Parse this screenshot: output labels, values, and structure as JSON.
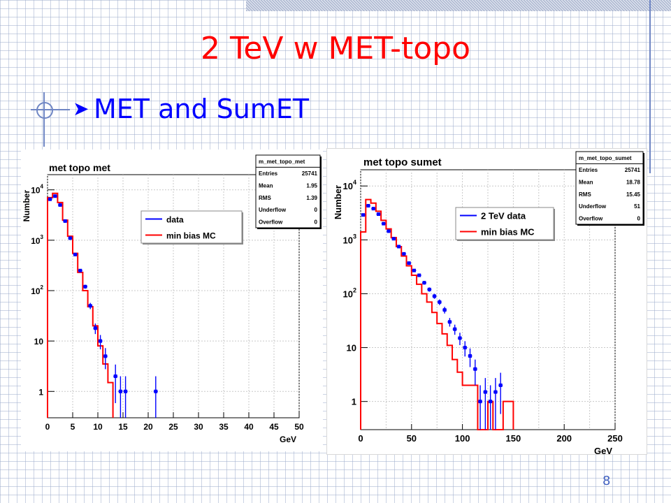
{
  "slide": {
    "title": "2 TeV w MET-topo",
    "bullet": "MET and SumET",
    "bullet_icon": "right-arrow-icon",
    "page_number": "8",
    "colors": {
      "title": "#ff0000",
      "bullet": "#0000ff",
      "data": "#0000ff",
      "mc": "#ff0000"
    }
  },
  "chart_data": [
    {
      "type": "line",
      "title": "met topo met",
      "ylabel": "Number",
      "xlabel": "GeV",
      "yscale": "log",
      "xlim": [
        0,
        50
      ],
      "ylim": [
        0.3,
        20000
      ],
      "x_ticks": [
        0,
        5,
        10,
        15,
        20,
        25,
        30,
        35,
        40,
        45,
        50
      ],
      "y_ticks": [
        {
          "value": 1,
          "base": "1",
          "exp": ""
        },
        {
          "value": 10,
          "base": "10",
          "exp": ""
        },
        {
          "value": 100,
          "base": "10",
          "exp": "2"
        },
        {
          "value": 1000,
          "base": "10",
          "exp": "3"
        },
        {
          "value": 10000,
          "base": "10",
          "exp": "4"
        }
      ],
      "grid": true,
      "legend_position": "top-right",
      "stats": {
        "name": "m_met_topo_met",
        "rows": [
          {
            "label": "Entries",
            "value": "25741"
          },
          {
            "label": "Mean",
            "value": "1.95"
          },
          {
            "label": "RMS",
            "value": "1.39"
          },
          {
            "label": "Underflow",
            "value": "0"
          },
          {
            "label": "Overflow",
            "value": "0"
          }
        ]
      },
      "series": [
        {
          "name": "data",
          "style": "points",
          "points": [
            {
              "x": 0.5,
              "y": 6500
            },
            {
              "x": 1.5,
              "y": 7500
            },
            {
              "x": 2.5,
              "y": 5000
            },
            {
              "x": 3.5,
              "y": 2400
            },
            {
              "x": 4.5,
              "y": 1100
            },
            {
              "x": 5.5,
              "y": 520
            },
            {
              "x": 6.5,
              "y": 250
            },
            {
              "x": 7.5,
              "y": 120
            },
            {
              "x": 8.5,
              "y": 50
            },
            {
              "x": 9.5,
              "y": 18
            },
            {
              "x": 10.5,
              "y": 10
            },
            {
              "x": 11.5,
              "y": 5
            },
            {
              "x": 13.5,
              "y": 2
            },
            {
              "x": 14.5,
              "y": 1
            },
            {
              "x": 15.5,
              "y": 1
            },
            {
              "x": 21.5,
              "y": 1
            }
          ]
        },
        {
          "name": "min bias MC",
          "style": "histogram",
          "bin_edges": [
            0,
            1,
            2,
            3,
            4,
            5,
            6,
            7,
            8,
            9,
            10,
            11,
            12,
            13
          ],
          "values": [
            7000,
            8500,
            5600,
            2500,
            1200,
            550,
            230,
            100,
            48,
            20,
            8,
            3.5,
            1.5
          ]
        }
      ]
    },
    {
      "type": "line",
      "title": "met topo sumet",
      "ylabel": "Number",
      "xlabel": "GeV",
      "yscale": "log",
      "xlim": [
        0,
        250
      ],
      "ylim": [
        0.3,
        20000
      ],
      "x_ticks": [
        0,
        50,
        100,
        150,
        200,
        250
      ],
      "y_ticks": [
        {
          "value": 1,
          "base": "1",
          "exp": ""
        },
        {
          "value": 10,
          "base": "10",
          "exp": ""
        },
        {
          "value": 100,
          "base": "10",
          "exp": "2"
        },
        {
          "value": 1000,
          "base": "10",
          "exp": "3"
        },
        {
          "value": 10000,
          "base": "10",
          "exp": "4"
        }
      ],
      "grid": true,
      "legend_position": "top-right",
      "stats": {
        "name": "m_met_topo_sumet",
        "rows": [
          {
            "label": "Entries",
            "value": "25741"
          },
          {
            "label": "Mean",
            "value": "18.78"
          },
          {
            "label": "RMS",
            "value": "15.45"
          },
          {
            "label": "Underflow",
            "value": "51"
          },
          {
            "label": "Overflow",
            "value": "0"
          }
        ]
      },
      "series": [
        {
          "name": "2 TeV data",
          "style": "points",
          "points": [
            {
              "x": 2.5,
              "y": 2900
            },
            {
              "x": 7.5,
              "y": 4300
            },
            {
              "x": 12.5,
              "y": 3800
            },
            {
              "x": 17.5,
              "y": 3000
            },
            {
              "x": 22.5,
              "y": 2000
            },
            {
              "x": 27.5,
              "y": 1450
            },
            {
              "x": 32.5,
              "y": 1050
            },
            {
              "x": 37.5,
              "y": 750
            },
            {
              "x": 42.5,
              "y": 550
            },
            {
              "x": 47.5,
              "y": 370
            },
            {
              "x": 52.5,
              "y": 270
            },
            {
              "x": 57.5,
              "y": 220
            },
            {
              "x": 62.5,
              "y": 160
            },
            {
              "x": 67.5,
              "y": 120
            },
            {
              "x": 72.5,
              "y": 90
            },
            {
              "x": 77.5,
              "y": 70
            },
            {
              "x": 82.5,
              "y": 50
            },
            {
              "x": 87.5,
              "y": 30
            },
            {
              "x": 92.5,
              "y": 22
            },
            {
              "x": 97.5,
              "y": 15
            },
            {
              "x": 102.5,
              "y": 10
            },
            {
              "x": 107.5,
              "y": 7
            },
            {
              "x": 112.5,
              "y": 4
            },
            {
              "x": 117.5,
              "y": 1
            },
            {
              "x": 122.5,
              "y": 1.5
            },
            {
              "x": 127.5,
              "y": 1
            },
            {
              "x": 132.5,
              "y": 1.5
            },
            {
              "x": 137.5,
              "y": 2
            }
          ]
        },
        {
          "name": "min bias MC",
          "style": "histogram",
          "bin_edges": [
            0,
            5,
            10,
            15,
            20,
            25,
            30,
            35,
            40,
            45,
            50,
            55,
            60,
            65,
            70,
            75,
            80,
            85,
            90,
            95,
            100,
            105,
            110,
            115,
            120,
            125,
            130,
            135,
            140,
            145,
            150
          ],
          "values": [
            1400,
            5600,
            4800,
            3400,
            2300,
            1600,
            1100,
            750,
            500,
            330,
            220,
            150,
            100,
            70,
            45,
            28,
            18,
            11,
            6,
            3.5,
            2,
            2,
            2,
            0.3,
            0.3,
            1,
            0.3,
            0.3,
            1,
            1
          ]
        }
      ]
    }
  ]
}
